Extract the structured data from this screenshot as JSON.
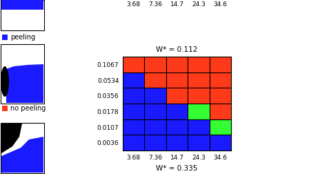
{
  "chart_data": {
    "type": "heatmap",
    "legend": [
      {
        "name": "peeling",
        "color": "#1a1aff"
      },
      {
        "name": "no peeling",
        "color": "#ff3a1a"
      }
    ],
    "panels": [
      {
        "x_labels": [
          3.68,
          7.36,
          14.7,
          24.3,
          34.6
        ]
      },
      {
        "title": "W* = 0.112",
        "x_labels": [
          3.68,
          7.36,
          14.7,
          24.3,
          34.6
        ],
        "y_labels": [
          0.1067,
          0.0534,
          0.0356,
          0.0178,
          0.0107,
          0.0036
        ],
        "cells": [
          [
            "#ff3a1a",
            "#ff3a1a",
            "#ff3a1a",
            "#ff3a1a",
            "#ff3a1a"
          ],
          [
            "#1a1aff",
            "#ff3a1a",
            "#ff3a1a",
            "#ff3a1a",
            "#ff3a1a"
          ],
          [
            "#1a1aff",
            "#1a1aff",
            "#ff3a1a",
            "#ff3a1a",
            "#ff3a1a"
          ],
          [
            "#1a1aff",
            "#1a1aff",
            "#1a1aff",
            "#33ff33",
            "#ff3a1a"
          ],
          [
            "#1a1aff",
            "#1a1aff",
            "#1a1aff",
            "#1a1aff",
            "#33ff33"
          ],
          [
            "#1a1aff",
            "#1a1aff",
            "#1a1aff",
            "#1a1aff",
            "#1a1aff"
          ]
        ]
      },
      {
        "title": "W* = 0.335"
      }
    ]
  }
}
